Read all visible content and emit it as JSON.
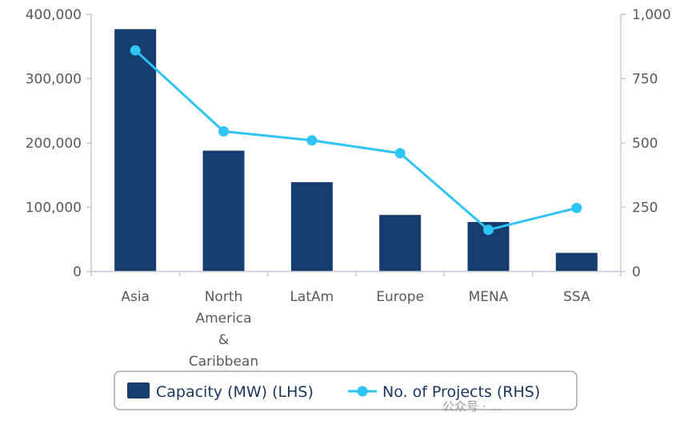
{
  "chart_data": {
    "type": "bar",
    "categories": [
      "Asia",
      "North America & Caribbean",
      "LatAm",
      "Europe",
      "MENA",
      "SSA"
    ],
    "category_lines": [
      [
        "Asia"
      ],
      [
        "North",
        "America",
        "&",
        "Caribbean"
      ],
      [
        "LatAm"
      ],
      [
        "Europe"
      ],
      [
        "MENA"
      ],
      [
        "SSA"
      ]
    ],
    "series": [
      {
        "name": "Capacity (MW) (LHS)",
        "type": "bar",
        "axis": "left",
        "color": "#173d6e",
        "values": [
          377000,
          188000,
          139000,
          88000,
          77000,
          29000
        ]
      },
      {
        "name": "No. of Projects (RHS)",
        "type": "line",
        "axis": "right",
        "color": "#2ec4f4",
        "values": [
          860,
          545,
          510,
          460,
          162,
          247
        ]
      }
    ],
    "ylim_left": [
      0,
      400000
    ],
    "yticks_left": [
      "0",
      "100,000",
      "200,000",
      "300,000",
      "400,000"
    ],
    "ylim_right": [
      0,
      1000
    ],
    "yticks_right": [
      "0",
      "250",
      "500",
      "750",
      "1,000"
    ],
    "grid": false,
    "legend_position": "bottom"
  },
  "watermark": "公众号 · ..."
}
